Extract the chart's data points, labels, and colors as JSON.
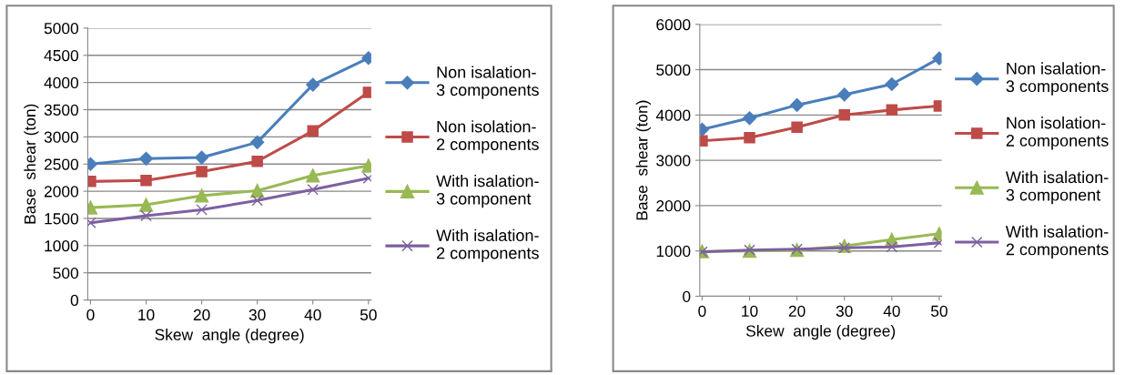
{
  "chart_data": [
    {
      "type": "line",
      "xlabel": "Skew  angle (degree)",
      "ylabel": "Base  shear (ton)",
      "categories": [
        "0",
        "10",
        "20",
        "30",
        "40",
        "50"
      ],
      "ylim": [
        0,
        5000
      ],
      "yticks": [
        0,
        500,
        1000,
        1500,
        2000,
        2500,
        3000,
        3500,
        4000,
        4500,
        5000
      ],
      "grid": "y",
      "legend": "right",
      "series": [
        {
          "name": "Non isalation-\n3 components",
          "color": "#4a7ebb",
          "marker": "diamond",
          "values": [
            2500,
            2600,
            2620,
            2900,
            3960,
            4450
          ]
        },
        {
          "name": "Non isolation-\n2 components",
          "color": "#be4b48",
          "marker": "square",
          "values": [
            2180,
            2200,
            2360,
            2550,
            3110,
            3820
          ]
        },
        {
          "name": "With isalation-\n3 component",
          "color": "#98b954",
          "marker": "triangle",
          "values": [
            1700,
            1750,
            1920,
            2010,
            2290,
            2470
          ]
        },
        {
          "name": "With isalation-\n2 components",
          "color": "#7d60a0",
          "marker": "cross",
          "values": [
            1420,
            1550,
            1660,
            1830,
            2030,
            2240
          ]
        }
      ]
    },
    {
      "type": "line",
      "xlabel": "Skew  angle (degree)",
      "ylabel": "Base  shear (ton)",
      "categories": [
        "0",
        "10",
        "20",
        "30",
        "40",
        "50"
      ],
      "ylim": [
        0,
        6000
      ],
      "yticks": [
        0,
        1000,
        2000,
        3000,
        4000,
        5000,
        6000
      ],
      "grid": "y",
      "legend": "right",
      "series": [
        {
          "name": "Non isalation-\n3 components",
          "color": "#4a7ebb",
          "marker": "diamond",
          "values": [
            3680,
            3930,
            4220,
            4450,
            4680,
            5250
          ]
        },
        {
          "name": "Non isolation-\n2 components",
          "color": "#be4b48",
          "marker": "square",
          "values": [
            3430,
            3500,
            3730,
            4000,
            4110,
            4200
          ]
        },
        {
          "name": "With isalation-\n3 component",
          "color": "#98b954",
          "marker": "triangle",
          "values": [
            990,
            1000,
            1020,
            1110,
            1250,
            1380
          ]
        },
        {
          "name": "With isalation-\n2 components",
          "color": "#7d60a0",
          "marker": "cross",
          "values": [
            980,
            1020,
            1040,
            1070,
            1090,
            1180
          ]
        }
      ]
    }
  ]
}
